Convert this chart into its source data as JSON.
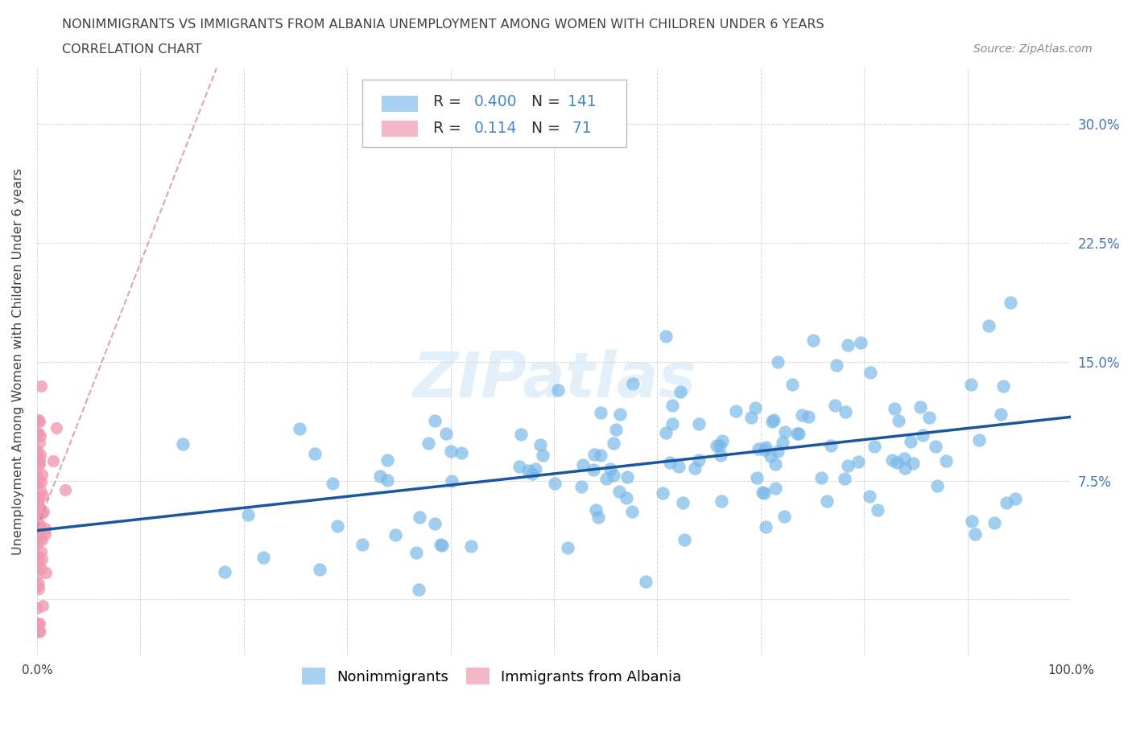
{
  "title_line1": "NONIMMIGRANTS VS IMMIGRANTS FROM ALBANIA UNEMPLOYMENT AMONG WOMEN WITH CHILDREN UNDER 6 YEARS",
  "title_line2": "CORRELATION CHART",
  "source_text": "Source: ZipAtlas.com",
  "ylabel": "Unemployment Among Women with Children Under 6 years",
  "watermark": "ZIPatlas",
  "x_min": 0.0,
  "x_max": 1.0,
  "y_min": -0.035,
  "y_max": 0.335,
  "x_ticks": [
    0.0,
    0.1,
    0.2,
    0.3,
    0.4,
    0.5,
    0.6,
    0.7,
    0.8,
    0.9,
    1.0
  ],
  "x_tick_labels": [
    "0.0%",
    "",
    "",
    "",
    "",
    "",
    "",
    "",
    "",
    "",
    "100.0%"
  ],
  "y_tick_positions": [
    0.0,
    0.075,
    0.15,
    0.225,
    0.3
  ],
  "y_tick_labels": [
    "",
    "7.5%",
    "15.0%",
    "22.5%",
    "30.0%"
  ],
  "nonimm_R": 0.4,
  "nonimm_N": 141,
  "imm_R": 0.114,
  "imm_N": 71,
  "nonimm_color": "#7ab8e8",
  "nonimm_line_color": "#1a56a0",
  "nonimm_legend_color": "#a8d0f0",
  "imm_color": "#f09ab0",
  "imm_line_color": "#d07090",
  "imm_legend_color": "#f4b8c8",
  "background_color": "#ffffff",
  "grid_color": "#cccccc",
  "title_color": "#404040",
  "legend_label_nonimm": "Nonimmigrants",
  "legend_label_imm": "Immigrants from Albania",
  "nonimm_seed": 42,
  "imm_seed": 123
}
